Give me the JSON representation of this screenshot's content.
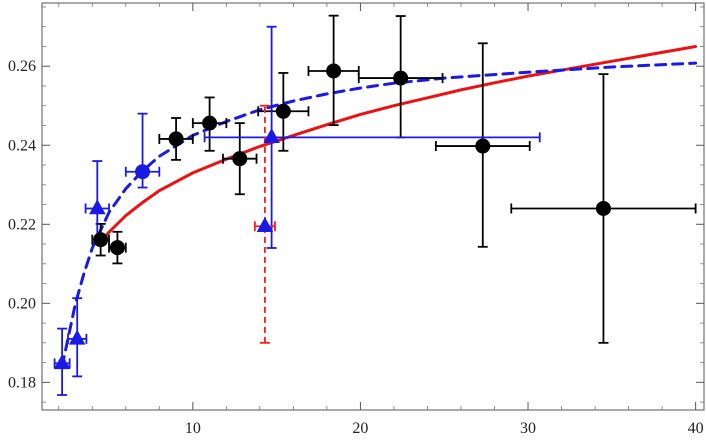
{
  "chart_data": {
    "type": "scatter",
    "title": "",
    "xlabel": "",
    "ylabel": "",
    "xlim": [
      1,
      40.5
    ],
    "ylim": [
      0.173,
      0.276
    ],
    "x_ticks": [
      10,
      20,
      30,
      40
    ],
    "y_ticks": [
      0.18,
      0.2,
      0.22,
      0.24,
      0.26
    ],
    "x_tick_labels": [
      "10",
      "20",
      "30",
      "40"
    ],
    "y_tick_labels": [
      "0.18",
      "0.20",
      "0.22",
      "0.24",
      "0.26"
    ],
    "grid": false,
    "legend": "none",
    "series": [
      {
        "marker": "circle",
        "color": "#000000",
        "points": [
          {
            "x": 4.5,
            "y": 0.2161,
            "xerr": 0.5,
            "yerr_lo": 0.004,
            "yerr_hi": 0.004
          },
          {
            "x": 5.5,
            "y": 0.2141,
            "xerr": 0.5,
            "yerr_lo": 0.004,
            "yerr_hi": 0.004
          },
          {
            "x": 9.0,
            "y": 0.2416,
            "xerr": 1.0,
            "yerr_lo": 0.0053,
            "yerr_hi": 0.0053
          },
          {
            "x": 11.0,
            "y": 0.2456,
            "xerr": 1.0,
            "yerr_lo": 0.007,
            "yerr_hi": 0.0065
          },
          {
            "x": 12.8,
            "y": 0.2366,
            "xerr": 1.0,
            "yerr_lo": 0.009,
            "yerr_hi": 0.009
          },
          {
            "x": 15.4,
            "y": 0.2486,
            "xerr": 1.5,
            "yerr_lo": 0.01,
            "yerr_hi": 0.0097
          },
          {
            "x": 18.4,
            "y": 0.2588,
            "xerr": 1.5,
            "yerr_lo": 0.0137,
            "yerr_hi": 0.014
          },
          {
            "x": 22.4,
            "y": 0.257,
            "xerr": 2.5,
            "yerr_lo": 0.015,
            "yerr_hi": 0.0157
          },
          {
            "x": 27.3,
            "y": 0.2398,
            "xerr": 2.8,
            "yerr_lo": 0.0255,
            "yerr_hi": 0.026
          },
          {
            "x": 34.5,
            "y": 0.224,
            "xerr": 5.5,
            "yerr_lo": 0.034,
            "yerr_hi": 0.034
          }
        ]
      },
      {
        "marker": "circle",
        "color": "#1a1ae6",
        "points": [
          {
            "x": 7.0,
            "y": 0.2333,
            "xerr": 1.0,
            "yerr_lo": 0.004,
            "yerr_hi": 0.0147
          }
        ]
      },
      {
        "marker": "triangle",
        "color": "#1a1ae6",
        "points": [
          {
            "x": 2.2,
            "y": 0.1848,
            "xerr": 0.45,
            "yerr_lo": 0.008,
            "yerr_hi": 0.0088
          },
          {
            "x": 3.1,
            "y": 0.191,
            "xerr": 0.55,
            "yerr_lo": 0.0095,
            "yerr_hi": 0.0103
          },
          {
            "x": 4.3,
            "y": 0.224,
            "xerr": 0.7,
            "yerr_lo": 0.008,
            "yerr_hi": 0.012
          },
          {
            "x": 14.7,
            "y": 0.242,
            "xerr": 4.0,
            "yerr_lo": 0.028,
            "yerr_hi": 0.028,
            "xerr_lo": 4.0,
            "xerr_hi": 16.0
          }
        ]
      },
      {
        "marker": "triangle",
        "color": "#ff1a1a",
        "dashed_errorbar": true,
        "points": [
          {
            "x": 14.3,
            "y": 0.2195,
            "xerr": 0.6,
            "yerr_lo": 0.0295,
            "yerr_hi": 0.0305
          }
        ]
      }
    ],
    "curves": [
      {
        "style": "solid",
        "color": "#ee1111",
        "x": [
          4.5,
          5,
          6,
          7,
          8,
          10,
          12,
          14,
          16,
          18,
          20,
          22,
          24,
          26,
          28,
          30,
          32,
          34,
          36,
          38,
          40
        ],
        "y": [
          0.2155,
          0.218,
          0.2222,
          0.2255,
          0.2285,
          0.233,
          0.2365,
          0.2397,
          0.2425,
          0.2452,
          0.2478,
          0.25,
          0.252,
          0.254,
          0.2558,
          0.2575,
          0.259,
          0.2605,
          0.262,
          0.2635,
          0.265
        ]
      },
      {
        "style": "dashed",
        "color": "#1a1ae6",
        "x": [
          2.2,
          2.5,
          3,
          3.5,
          4,
          5,
          6,
          7,
          8,
          10,
          12,
          14,
          16,
          18,
          20,
          22,
          25,
          30,
          35,
          40
        ],
        "y": [
          0.184,
          0.19,
          0.2,
          0.2075,
          0.214,
          0.223,
          0.229,
          0.2335,
          0.2372,
          0.2425,
          0.246,
          0.249,
          0.2512,
          0.253,
          0.2545,
          0.2557,
          0.257,
          0.2585,
          0.2598,
          0.2608
        ]
      }
    ]
  }
}
